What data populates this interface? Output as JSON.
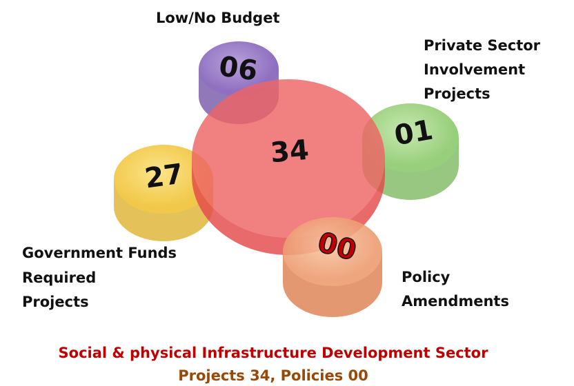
{
  "center": {
    "value": "34"
  },
  "nodes": [
    {
      "label": [
        "Low/No Budget"
      ],
      "value": "06"
    },
    {
      "label": [
        "Private Sector",
        "Involvement",
        "Projects"
      ],
      "value": "01"
    },
    {
      "label": [
        "Government Funds",
        "Required",
        "Projects"
      ],
      "value": "27"
    },
    {
      "label": [
        "Policy",
        "Amendments"
      ],
      "value": "00"
    }
  ],
  "caption": {
    "title": "Social & physical Infrastructure Development Sector",
    "subtitle": "Projects 34, Policies 00"
  }
}
